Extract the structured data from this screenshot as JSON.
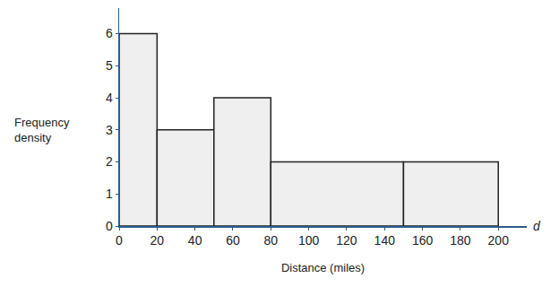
{
  "chart_data": {
    "type": "histogram",
    "bins": [
      0,
      20,
      50,
      80,
      150,
      200
    ],
    "values": [
      6,
      3,
      4,
      2,
      2
    ],
    "color": "#efefef",
    "xlabel": "Distance (miles)",
    "ylabel": "Frequency density",
    "annotations": [
      "d"
    ],
    "xlim": [
      0,
      215
    ],
    "ylim": [
      0,
      6.8
    ],
    "xticks": [
      0,
      20,
      40,
      60,
      80,
      100,
      120,
      140,
      160,
      180,
      200
    ],
    "yticks": [
      0,
      1,
      2,
      3,
      4,
      5,
      6
    ],
    "grid": false
  }
}
